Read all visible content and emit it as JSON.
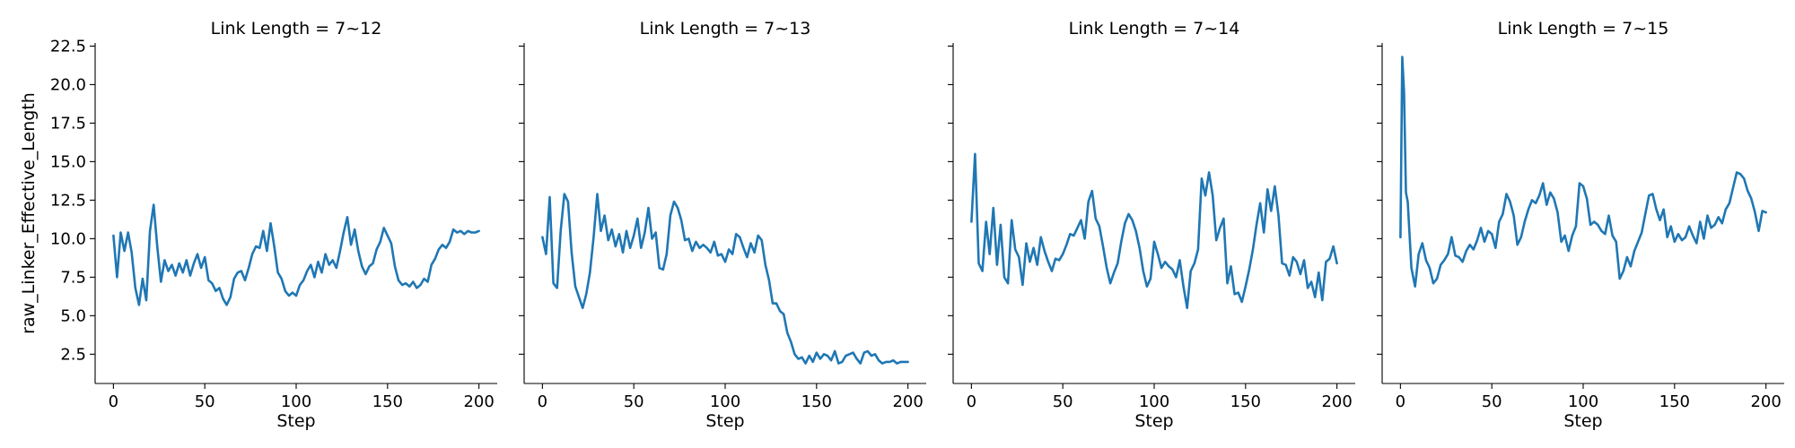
{
  "chart_data": {
    "type": "line",
    "x_label": "Step",
    "y_label": "raw_Linker_Effective_Length",
    "x_ticks": [
      0,
      50,
      100,
      150,
      200
    ],
    "y_ticks": [
      2.5,
      5.0,
      7.5,
      10.0,
      12.5,
      15.0,
      17.5,
      20.0,
      22.5
    ],
    "y_tick_labels": [
      "2.5",
      "5.0",
      "7.5",
      "10.0",
      "12.5",
      "15.0",
      "17.5",
      "20.0",
      "22.5"
    ],
    "xlim": [
      -10,
      210
    ],
    "ylim": [
      0.6,
      22.7
    ],
    "grid": false,
    "line_color": "#1f77b4",
    "panels": [
      {
        "title": "Link Length = 7~12",
        "x": [
          0,
          2,
          4,
          6,
          8,
          10,
          12,
          14,
          16,
          18,
          20,
          22,
          24,
          26,
          28,
          30,
          32,
          34,
          36,
          38,
          40,
          42,
          44,
          46,
          48,
          50,
          52,
          54,
          56,
          58,
          60,
          62,
          64,
          66,
          68,
          70,
          72,
          74,
          76,
          78,
          80,
          82,
          84,
          86,
          88,
          90,
          92,
          94,
          96,
          98,
          100,
          102,
          104,
          106,
          108,
          110,
          112,
          114,
          116,
          118,
          120,
          122,
          124,
          126,
          128,
          130,
          132,
          134,
          136,
          138,
          140,
          142,
          144,
          146,
          148,
          150,
          152,
          154,
          156,
          158,
          160,
          162,
          164,
          166,
          168,
          170,
          172,
          174,
          176,
          178,
          180,
          182,
          184,
          186,
          188,
          190,
          192,
          194,
          196,
          198,
          200
        ],
        "y": [
          10.2,
          7.5,
          10.4,
          9.2,
          10.4,
          9.1,
          6.8,
          5.7,
          7.4,
          6.0,
          10.5,
          12.2,
          9.5,
          7.2,
          8.6,
          7.9,
          8.3,
          7.6,
          8.4,
          7.8,
          8.6,
          7.6,
          8.4,
          9.0,
          8.1,
          8.8,
          7.3,
          7.1,
          6.6,
          6.8,
          6.1,
          5.7,
          6.2,
          7.4,
          7.8,
          7.9,
          7.3,
          8.1,
          9.0,
          9.5,
          9.4,
          10.5,
          9.2,
          11.0,
          9.5,
          7.8,
          7.4,
          6.6,
          6.3,
          6.5,
          6.3,
          7.0,
          7.3,
          7.9,
          8.3,
          7.5,
          8.5,
          7.8,
          9.0,
          8.3,
          8.6,
          8.1,
          9.2,
          10.4,
          11.4,
          9.6,
          10.6,
          9.2,
          8.2,
          7.7,
          8.2,
          8.4,
          9.3,
          9.8,
          10.7,
          10.2,
          9.7,
          8.2,
          7.3,
          7.0,
          7.1,
          6.9,
          7.2,
          6.8,
          7.0,
          7.4,
          7.2,
          8.3,
          8.7,
          9.3,
          9.6,
          9.4,
          9.8,
          10.6,
          10.4,
          10.5,
          10.3,
          10.5,
          10.4,
          10.4,
          10.5
        ]
      },
      {
        "title": "Link Length = 7~13",
        "x": [
          0,
          2,
          4,
          6,
          8,
          10,
          12,
          14,
          16,
          18,
          20,
          22,
          24,
          26,
          28,
          30,
          32,
          34,
          36,
          38,
          40,
          42,
          44,
          46,
          48,
          50,
          52,
          54,
          56,
          58,
          60,
          62,
          64,
          66,
          68,
          70,
          72,
          74,
          76,
          78,
          80,
          82,
          84,
          86,
          88,
          90,
          92,
          94,
          96,
          98,
          100,
          102,
          104,
          106,
          108,
          110,
          112,
          114,
          116,
          118,
          120,
          122,
          124,
          126,
          128,
          130,
          132,
          134,
          136,
          138,
          140,
          142,
          144,
          146,
          148,
          150,
          152,
          154,
          156,
          158,
          160,
          162,
          164,
          166,
          168,
          170,
          172,
          174,
          176,
          178,
          180,
          182,
          184,
          186,
          188,
          190,
          192,
          194,
          196,
          198,
          200
        ],
        "y": [
          10.1,
          9.0,
          12.7,
          7.1,
          6.8,
          10.5,
          12.9,
          12.4,
          9.1,
          6.9,
          6.2,
          5.5,
          6.4,
          7.8,
          10.1,
          12.9,
          10.5,
          11.5,
          9.9,
          10.6,
          9.5,
          10.3,
          9.1,
          10.5,
          9.4,
          10.2,
          11.3,
          9.4,
          10.4,
          12.0,
          10.0,
          10.4,
          8.1,
          8.0,
          9.0,
          11.5,
          12.4,
          12.0,
          11.2,
          9.9,
          10.0,
          9.2,
          9.8,
          9.4,
          9.6,
          9.4,
          9.1,
          9.8,
          8.9,
          9.0,
          8.5,
          9.3,
          9.0,
          10.3,
          10.1,
          9.4,
          8.8,
          9.7,
          9.1,
          10.2,
          9.9,
          8.3,
          7.3,
          5.8,
          5.8,
          5.3,
          5.1,
          3.9,
          3.3,
          2.5,
          2.2,
          2.3,
          1.9,
          2.4,
          2.0,
          2.6,
          2.2,
          2.5,
          2.4,
          2.1,
          2.7,
          1.9,
          2.0,
          2.4,
          2.5,
          2.6,
          2.2,
          1.9,
          2.6,
          2.7,
          2.4,
          2.5,
          2.1,
          1.9,
          2.0,
          2.0,
          2.1,
          1.9,
          2.0,
          2.0,
          2.0
        ]
      },
      {
        "title": "Link Length = 7~14",
        "x": [
          0,
          2,
          4,
          6,
          8,
          10,
          12,
          14,
          16,
          18,
          20,
          22,
          24,
          26,
          28,
          30,
          32,
          34,
          36,
          38,
          40,
          42,
          44,
          46,
          48,
          50,
          52,
          54,
          56,
          58,
          60,
          62,
          64,
          66,
          68,
          70,
          72,
          74,
          76,
          78,
          80,
          82,
          84,
          86,
          88,
          90,
          92,
          94,
          96,
          98,
          100,
          102,
          104,
          106,
          108,
          110,
          112,
          114,
          116,
          118,
          120,
          122,
          124,
          126,
          128,
          130,
          132,
          134,
          136,
          138,
          140,
          142,
          144,
          146,
          148,
          150,
          152,
          154,
          156,
          158,
          160,
          162,
          164,
          166,
          168,
          170,
          172,
          174,
          176,
          178,
          180,
          182,
          184,
          186,
          188,
          190,
          192,
          194,
          196,
          198,
          200
        ],
        "y": [
          11.1,
          15.5,
          8.4,
          7.9,
          11.1,
          9.0,
          12.0,
          8.3,
          10.9,
          7.5,
          7.1,
          11.2,
          9.3,
          8.8,
          7.0,
          9.7,
          8.5,
          9.4,
          8.3,
          10.1,
          9.2,
          8.5,
          7.9,
          8.7,
          8.6,
          9.0,
          9.6,
          10.3,
          10.2,
          10.7,
          11.2,
          10.0,
          12.4,
          13.1,
          11.3,
          10.8,
          9.5,
          8.1,
          7.1,
          7.8,
          8.4,
          9.8,
          11.0,
          11.6,
          11.2,
          10.5,
          9.4,
          7.9,
          6.9,
          7.4,
          9.8,
          9.0,
          8.1,
          8.5,
          8.2,
          8.0,
          7.5,
          8.6,
          6.9,
          5.5,
          7.9,
          8.4,
          9.3,
          13.9,
          12.8,
          14.3,
          12.8,
          9.9,
          10.7,
          11.3,
          7.1,
          8.2,
          6.4,
          6.5,
          5.9,
          6.9,
          8.0,
          9.3,
          10.9,
          12.3,
          10.4,
          13.2,
          11.8,
          13.4,
          11.5,
          8.4,
          8.3,
          7.6,
          8.8,
          8.5,
          7.7,
          8.6,
          6.8,
          7.2,
          6.2,
          7.8,
          6.0,
          8.5,
          8.7,
          9.5,
          8.4
        ]
      },
      {
        "title": "Link Length = 7~15",
        "x": [
          0,
          1,
          2,
          3,
          4,
          6,
          8,
          10,
          12,
          14,
          16,
          18,
          20,
          22,
          24,
          26,
          28,
          30,
          32,
          34,
          36,
          38,
          40,
          42,
          44,
          46,
          48,
          50,
          52,
          54,
          56,
          58,
          60,
          62,
          64,
          66,
          68,
          70,
          72,
          74,
          76,
          78,
          80,
          82,
          84,
          86,
          88,
          90,
          92,
          94,
          96,
          98,
          100,
          102,
          104,
          106,
          108,
          110,
          112,
          114,
          116,
          118,
          120,
          122,
          124,
          126,
          128,
          130,
          132,
          134,
          136,
          138,
          140,
          142,
          144,
          146,
          148,
          150,
          152,
          154,
          156,
          158,
          160,
          162,
          164,
          166,
          168,
          170,
          172,
          174,
          176,
          178,
          180,
          182,
          184,
          186,
          188,
          190,
          192,
          194,
          196,
          198,
          200
        ],
        "y": [
          10.1,
          21.8,
          19.5,
          13.0,
          12.4,
          8.1,
          6.9,
          9.0,
          9.7,
          8.6,
          8.1,
          7.1,
          7.4,
          8.3,
          8.6,
          9.0,
          10.1,
          8.9,
          8.8,
          8.5,
          9.2,
          9.6,
          9.3,
          9.9,
          10.7,
          9.8,
          10.5,
          10.3,
          9.4,
          11.1,
          11.6,
          12.9,
          12.4,
          11.5,
          9.6,
          10.1,
          11.1,
          11.9,
          12.5,
          12.3,
          12.8,
          13.6,
          12.2,
          13.0,
          12.6,
          11.7,
          9.8,
          10.2,
          9.2,
          10.2,
          10.8,
          13.6,
          13.4,
          12.6,
          10.9,
          11.1,
          10.9,
          10.5,
          10.3,
          11.5,
          10.2,
          9.8,
          7.4,
          7.9,
          8.8,
          8.2,
          9.2,
          9.8,
          10.4,
          11.6,
          12.8,
          12.9,
          11.9,
          11.2,
          11.9,
          10.1,
          10.8,
          9.8,
          10.3,
          9.9,
          10.1,
          10.8,
          10.2,
          9.7,
          11.1,
          10.0,
          11.5,
          10.7,
          10.9,
          11.4,
          11.0,
          11.9,
          12.3,
          13.3,
          14.3,
          14.2,
          13.9,
          13.1,
          12.6,
          11.7,
          10.5,
          11.8,
          11.7
        ]
      }
    ]
  }
}
